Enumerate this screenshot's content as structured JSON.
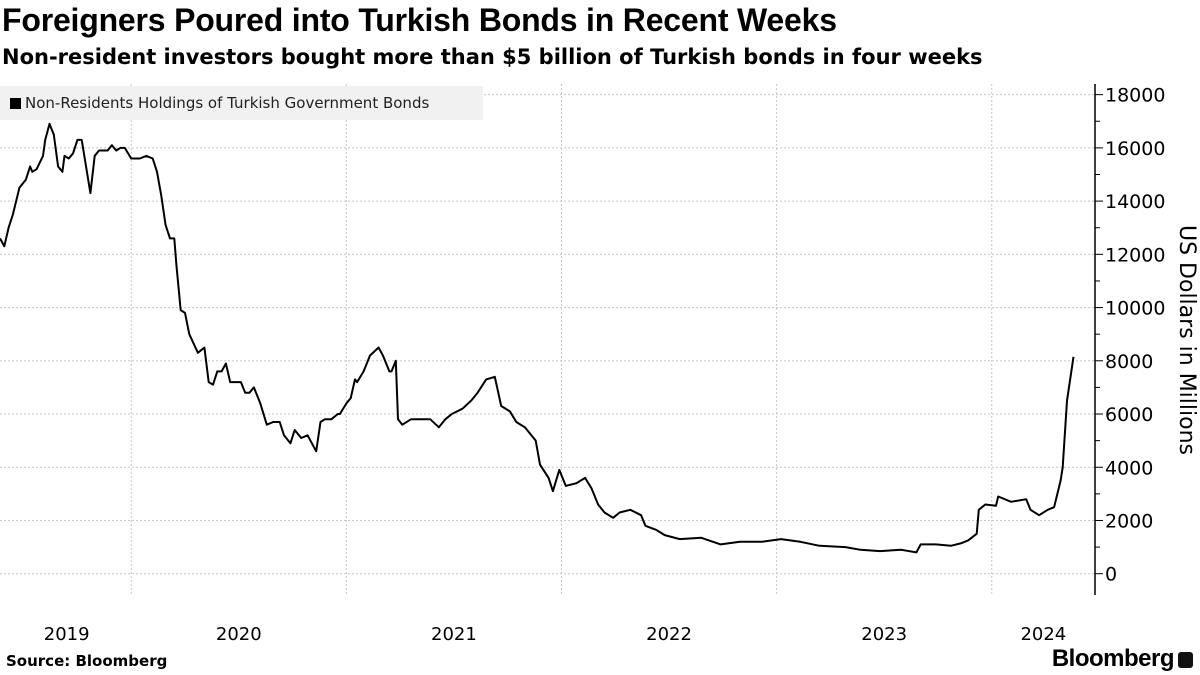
{
  "chart_data": {
    "type": "line",
    "title": "Foreigners Poured into Turkish Bonds in Recent Weeks",
    "subtitle": "Non-resident investors bought more than $5 billion of Turkish bonds in four weeks",
    "ylabel": "US Dollars in Millions",
    "xlabel": "",
    "ylim": [
      -800,
      18400
    ],
    "xlim": [
      2019.39,
      2024.48
    ],
    "yticks": [
      "0",
      "2000",
      "4000",
      "6000",
      "8000",
      "10000",
      "12000",
      "14000",
      "16000",
      "18000"
    ],
    "ytick_values": [
      0,
      2000,
      4000,
      6000,
      8000,
      10000,
      12000,
      14000,
      16000,
      18000
    ],
    "xticks": [
      "2019",
      "2020",
      "2021",
      "2022",
      "2023",
      "2024"
    ],
    "xtick_positions": [
      2019.7,
      2020.5,
      2021.5,
      2022.5,
      2023.5,
      2024.24
    ],
    "year_gridlines": [
      2020,
      2021,
      2022,
      2023,
      2024
    ],
    "grid": true,
    "legend_position": "top-left",
    "series": [
      {
        "name": "Non-Residents Holdings of Turkish Government Bonds",
        "color": "#000000",
        "x": [
          2019.39,
          2019.41,
          2019.43,
          2019.45,
          2019.48,
          2019.51,
          2019.53,
          2019.54,
          2019.56,
          2019.59,
          2019.6,
          2019.62,
          2019.64,
          2019.66,
          2019.68,
          2019.69,
          2019.71,
          2019.73,
          2019.75,
          2019.77,
          2019.81,
          2019.83,
          2019.85,
          2019.89,
          2019.91,
          2019.93,
          2019.95,
          2019.97,
          2020.0,
          2020.04,
          2020.07,
          2020.1,
          2020.12,
          2020.14,
          2020.16,
          2020.18,
          2020.2,
          2020.21,
          2020.23,
          2020.25,
          2020.27,
          2020.31,
          2020.34,
          2020.36,
          2020.38,
          2020.4,
          2020.42,
          2020.44,
          2020.46,
          2020.51,
          2020.53,
          2020.55,
          2020.57,
          2020.6,
          2020.63,
          2020.66,
          2020.69,
          2020.71,
          2020.74,
          2020.76,
          2020.79,
          2020.82,
          2020.86,
          2020.88,
          2020.9,
          2020.93,
          2020.96,
          2020.97,
          2021.0,
          2021.02,
          2021.04,
          2021.05,
          2021.08,
          2021.11,
          2021.15,
          2021.17,
          2021.2,
          2021.21,
          2021.23,
          2021.24,
          2021.26,
          2021.3,
          2021.34,
          2021.39,
          2021.43,
          2021.46,
          2021.49,
          2021.54,
          2021.58,
          2021.61,
          2021.65,
          2021.69,
          2021.72,
          2021.76,
          2021.79,
          2021.83,
          2021.88,
          2021.9,
          2021.94,
          2021.96,
          2021.99,
          2022.02,
          2022.07,
          2022.11,
          2022.14,
          2022.17,
          2022.2,
          2022.24,
          2022.27,
          2022.32,
          2022.37,
          2022.39,
          2022.44,
          2022.48,
          2022.55,
          2022.65,
          2022.74,
          2022.83,
          2022.93,
          2023.02,
          2023.11,
          2023.2,
          2023.32,
          2023.39,
          2023.48,
          2023.58,
          2023.65,
          2023.67,
          2023.74,
          2023.81,
          2023.86,
          2023.89,
          2023.93,
          2023.94,
          2023.97,
          2024.02,
          2024.03,
          2024.09,
          2024.16,
          2024.18,
          2024.22,
          2024.26,
          2024.29,
          2024.32,
          2024.33,
          2024.35,
          2024.38
        ],
        "values": [
          12600,
          12300,
          13000,
          13500,
          14500,
          14800,
          15300,
          15100,
          15200,
          15700,
          16300,
          16900,
          16500,
          15300,
          15100,
          15700,
          15600,
          15800,
          16300,
          16300,
          14300,
          15700,
          15900,
          15900,
          16100,
          15900,
          16000,
          16000,
          15600,
          15600,
          15700,
          15600,
          15100,
          14200,
          13100,
          12600,
          12600,
          11600,
          9900,
          9800,
          9000,
          8300,
          8500,
          7200,
          7100,
          7600,
          7600,
          7900,
          7200,
          7200,
          6800,
          6800,
          7000,
          6400,
          5600,
          5700,
          5700,
          5200,
          4900,
          5400,
          5100,
          5200,
          4600,
          5700,
          5800,
          5800,
          6000,
          6000,
          6400,
          6600,
          7300,
          7200,
          7600,
          8200,
          8500,
          8200,
          7600,
          7600,
          8000,
          5800,
          5600,
          5800,
          5800,
          5800,
          5500,
          5800,
          6000,
          6200,
          6500,
          6800,
          7300,
          7400,
          6300,
          6100,
          5700,
          5500,
          5000,
          4100,
          3600,
          3100,
          3900,
          3300,
          3400,
          3600,
          3200,
          2600,
          2300,
          2100,
          2300,
          2400,
          2200,
          1800,
          1650,
          1450,
          1300,
          1350,
          1100,
          1200,
          1200,
          1300,
          1200,
          1050,
          1000,
          900,
          850,
          900,
          800,
          1100,
          1100,
          1050,
          1150,
          1250,
          1500,
          2400,
          2600,
          2550,
          2900,
          2700,
          2800,
          2400,
          2200,
          2400,
          2500,
          3500,
          4000,
          6500,
          8150
        ]
      }
    ]
  },
  "footer": {
    "source": "Source: Bloomberg",
    "brand": "Bloomberg"
  }
}
